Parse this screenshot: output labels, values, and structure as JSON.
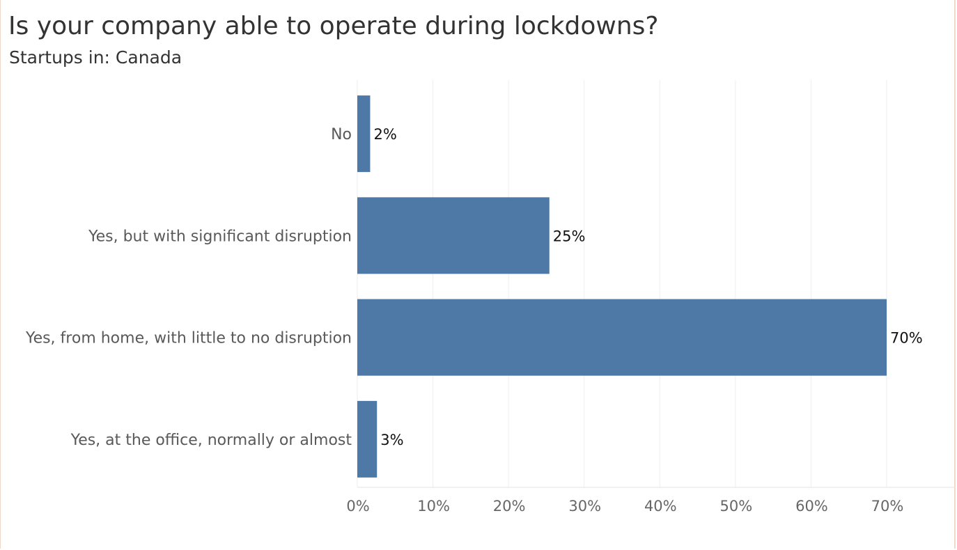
{
  "chart_data": {
    "type": "bar",
    "orientation": "horizontal",
    "title": "Is your company able to operate during lockdowns?",
    "subtitle": "Startups in: Canada",
    "categories": [
      "No",
      "Yes, but with significant disruption",
      "Yes, from home, with little to no disruption",
      "Yes, at the office, normally or almost"
    ],
    "values": [
      1.7,
      25.4,
      70.0,
      2.6
    ],
    "value_labels": [
      "2%",
      "25%",
      "70%",
      "3%"
    ],
    "xlim": [
      0,
      79
    ],
    "xticks": [
      0,
      10,
      20,
      30,
      40,
      50,
      60,
      70
    ],
    "xtick_labels": [
      "0%",
      "10%",
      "20%",
      "30%",
      "40%",
      "50%",
      "60%",
      "70%"
    ],
    "grid": true,
    "bar_color": "#4e79a7",
    "grid_color": "#eeeeee",
    "xlabel": "",
    "ylabel": ""
  }
}
